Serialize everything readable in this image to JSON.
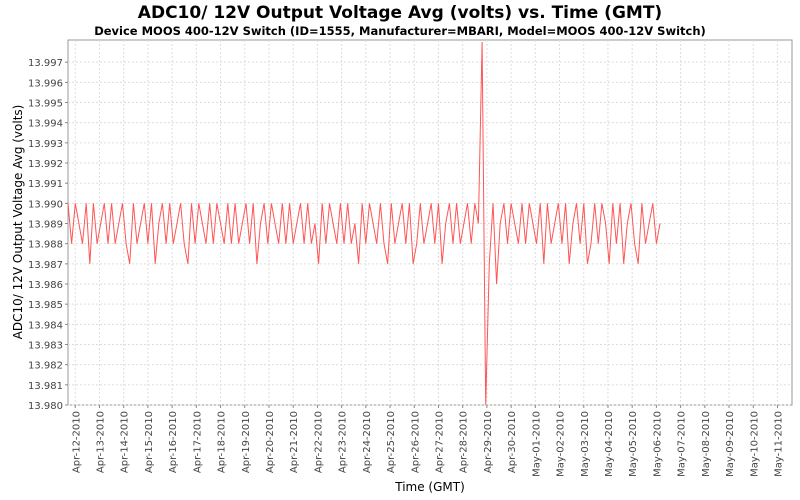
{
  "chart_data": {
    "type": "line",
    "title": "ADC10/ 12V Output Voltage Avg (volts) vs. Time (GMT)",
    "subtitle": "Device MOOS 400-12V Switch (ID=1555, Manufacturer=MBARI, Model=MOOS 400-12V Switch)",
    "xlabel": "Time (GMT)",
    "ylabel": "ADC10/ 12V Output Voltage Avg (volts)",
    "ylim": [
      13.98,
      13.9981
    ],
    "xlim_days_from_first_tick": [
      -0.3,
      29.6
    ],
    "x_ticks": [
      "Apr-12-2010",
      "Apr-13-2010",
      "Apr-14-2010",
      "Apr-15-2010",
      "Apr-16-2010",
      "Apr-17-2010",
      "Apr-18-2010",
      "Apr-19-2010",
      "Apr-20-2010",
      "Apr-21-2010",
      "Apr-22-2010",
      "Apr-23-2010",
      "Apr-24-2010",
      "Apr-25-2010",
      "Apr-26-2010",
      "Apr-27-2010",
      "Apr-28-2010",
      "Apr-29-2010",
      "Apr-30-2010",
      "May-01-2010",
      "May-02-2010",
      "May-03-2010",
      "May-04-2010",
      "May-05-2010",
      "May-06-2010",
      "May-07-2010",
      "May-08-2010",
      "May-09-2010",
      "May-10-2010",
      "May-11-2010"
    ],
    "y_ticks": [
      "13.980",
      "13.981",
      "13.982",
      "13.983",
      "13.984",
      "13.985",
      "13.986",
      "13.987",
      "13.988",
      "13.989",
      "13.990",
      "13.991",
      "13.992",
      "13.993",
      "13.994",
      "13.995",
      "13.996",
      "13.997"
    ],
    "grid": true,
    "series": [
      {
        "name": "ADC10/ 12V Output Voltage Avg",
        "color": "#ff5555",
        "x_start_days": -0.3,
        "x_step_days": 0.15,
        "values": [
          13.99,
          13.988,
          13.99,
          13.989,
          13.988,
          13.99,
          13.987,
          13.99,
          13.988,
          13.989,
          13.99,
          13.988,
          13.99,
          13.988,
          13.989,
          13.99,
          13.988,
          13.987,
          13.99,
          13.988,
          13.989,
          13.99,
          13.988,
          13.99,
          13.987,
          13.989,
          13.99,
          13.988,
          13.99,
          13.988,
          13.989,
          13.99,
          13.988,
          13.987,
          13.99,
          13.988,
          13.99,
          13.989,
          13.988,
          13.99,
          13.988,
          13.99,
          13.989,
          13.988,
          13.99,
          13.988,
          13.99,
          13.988,
          13.989,
          13.99,
          13.988,
          13.99,
          13.987,
          13.989,
          13.99,
          13.988,
          13.99,
          13.989,
          13.988,
          13.99,
          13.988,
          13.99,
          13.988,
          13.989,
          13.99,
          13.988,
          13.99,
          13.988,
          13.989,
          13.987,
          13.99,
          13.988,
          13.99,
          13.989,
          13.988,
          13.99,
          13.988,
          13.99,
          13.988,
          13.989,
          13.987,
          13.99,
          13.988,
          13.99,
          13.989,
          13.988,
          13.99,
          13.988,
          13.987,
          13.99,
          13.988,
          13.989,
          13.99,
          13.988,
          13.99,
          13.987,
          13.988,
          13.99,
          13.988,
          13.989,
          13.99,
          13.988,
          13.99,
          13.987,
          13.989,
          13.99,
          13.988,
          13.99,
          13.988,
          13.989,
          13.99,
          13.988,
          13.99,
          13.989,
          13.998,
          13.98,
          13.987,
          13.99,
          13.986,
          13.989,
          13.99,
          13.988,
          13.99,
          13.989,
          13.988,
          13.99,
          13.988,
          13.99,
          13.989,
          13.988,
          13.99,
          13.987,
          13.99,
          13.988,
          13.989,
          13.99,
          13.988,
          13.99,
          13.987,
          13.989,
          13.99,
          13.988,
          13.99,
          13.987,
          13.988,
          13.99,
          13.988,
          13.99,
          13.989,
          13.987,
          13.99,
          13.988,
          13.99,
          13.987,
          13.989,
          13.99,
          13.988,
          13.987,
          13.99,
          13.988,
          13.989,
          13.99,
          13.988,
          13.989
        ]
      }
    ]
  }
}
